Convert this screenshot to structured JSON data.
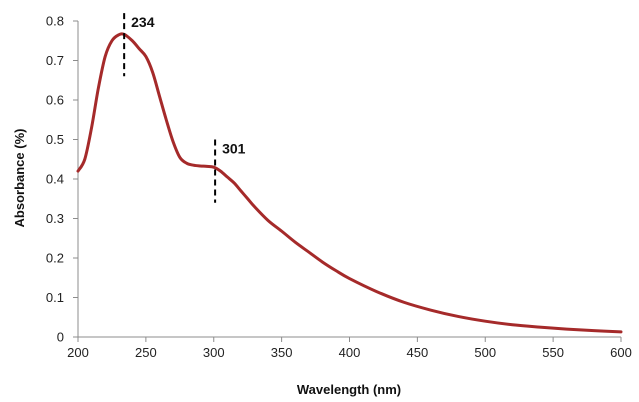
{
  "chart_data": {
    "type": "line",
    "title": "",
    "xlabel": "Wavelength (nm)",
    "ylabel": "Absorbance  (%)",
    "xlim": [
      200,
      600
    ],
    "ylim": [
      0,
      0.8
    ],
    "x_ticks": [
      200,
      250,
      300,
      350,
      400,
      450,
      500,
      550,
      600
    ],
    "x_tick_labels": [
      "200",
      "250",
      "300",
      "350",
      "400",
      "450",
      "500",
      "550",
      "600"
    ],
    "y_ticks": [
      0,
      0.1,
      0.2,
      0.3,
      0.4,
      0.5,
      0.6,
      0.7,
      0.8
    ],
    "y_tick_labels": [
      "0",
      "0.1",
      "0.2",
      "0.3",
      "0.4",
      "0.5",
      "0.6",
      "0.7",
      "0.8"
    ],
    "grid": false,
    "legend": "none",
    "line_color": "#a52a2a",
    "series": [
      {
        "x": [
          200,
          205,
          210,
          215,
          220,
          225,
          230,
          234,
          240,
          245,
          250,
          255,
          260,
          265,
          270,
          275,
          280,
          285,
          290,
          295,
          300,
          305,
          310,
          315,
          320,
          325,
          330,
          340,
          350,
          360,
          370,
          380,
          390,
          400,
          420,
          440,
          460,
          480,
          500,
          520,
          540,
          560,
          580,
          600
        ],
        "y": [
          0.42,
          0.45,
          0.53,
          0.63,
          0.71,
          0.75,
          0.765,
          0.766,
          0.75,
          0.73,
          0.71,
          0.67,
          0.61,
          0.55,
          0.495,
          0.455,
          0.44,
          0.435,
          0.433,
          0.432,
          0.43,
          0.42,
          0.405,
          0.39,
          0.37,
          0.35,
          0.33,
          0.295,
          0.268,
          0.24,
          0.215,
          0.19,
          0.168,
          0.148,
          0.115,
          0.088,
          0.068,
          0.052,
          0.04,
          0.031,
          0.025,
          0.02,
          0.016,
          0.013
        ]
      }
    ],
    "annotations": [
      {
        "x": 234,
        "label": "234",
        "y_range": [
          0.66,
          0.82
        ]
      },
      {
        "x": 301,
        "label": "301",
        "y_range": [
          0.34,
          0.5
        ]
      }
    ]
  }
}
